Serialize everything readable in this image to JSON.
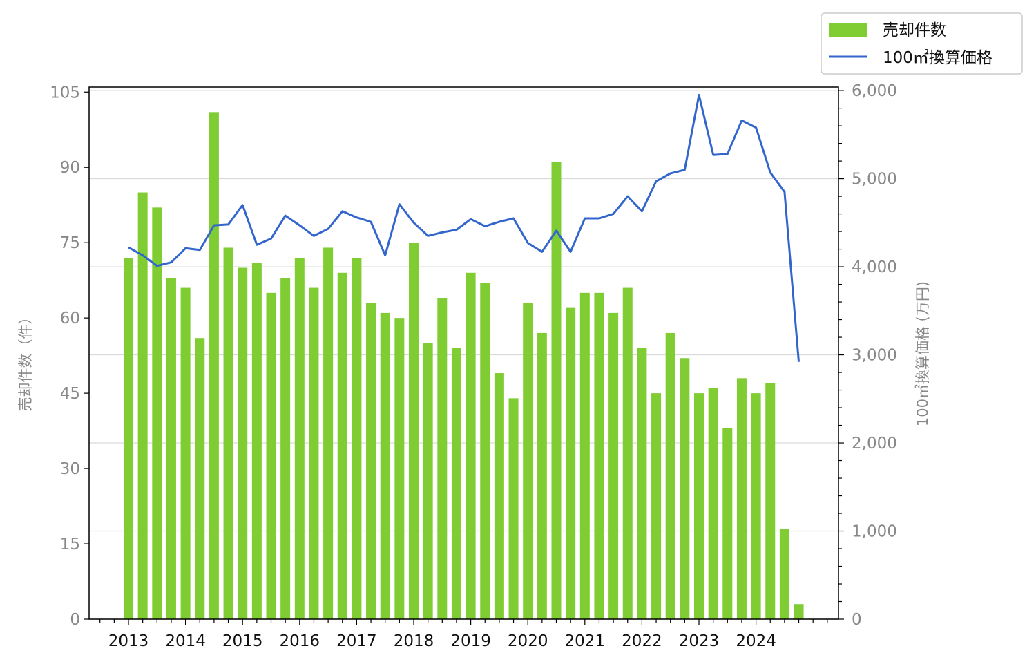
{
  "chart_data": {
    "type": "bar+line",
    "x_tick_labels": [
      "2013",
      "2014",
      "2015",
      "2016",
      "2017",
      "2018",
      "2019",
      "2020",
      "2021",
      "2022",
      "2023",
      "2024"
    ],
    "quarter_count": 48,
    "series": [
      {
        "name": "売却件数",
        "type": "bar",
        "axis": "left",
        "color": "#7fcc33",
        "values": [
          72,
          85,
          82,
          68,
          66,
          56,
          101,
          74,
          70,
          71,
          65,
          68,
          72,
          66,
          74,
          69,
          72,
          63,
          61,
          60,
          75,
          55,
          64,
          54,
          69,
          67,
          49,
          44,
          63,
          57,
          91,
          62,
          65,
          65,
          61,
          66,
          54,
          45,
          57,
          52,
          45,
          46,
          38,
          48,
          45,
          47,
          18,
          3
        ]
      },
      {
        "name": "100㎡換算価格",
        "type": "line",
        "axis": "right",
        "color": "#3366cc",
        "values": [
          4220,
          4130,
          4010,
          4050,
          4210,
          4190,
          4470,
          4480,
          4700,
          4250,
          4320,
          4580,
          4470,
          4350,
          4430,
          4630,
          4560,
          4510,
          4130,
          4710,
          4500,
          4350,
          4390,
          4420,
          4540,
          4460,
          4510,
          4550,
          4270,
          4170,
          4410,
          4170,
          4550,
          4550,
          4600,
          4800,
          4630,
          4970,
          5060,
          5100,
          5950,
          5270,
          5280,
          5660,
          5580,
          5070,
          4850,
          2920
        ]
      }
    ],
    "y_left": {
      "label": "売却件数（件）",
      "range": [
        0,
        106
      ],
      "ticks": [
        "0",
        "15",
        "30",
        "45",
        "60",
        "75",
        "90",
        "105"
      ]
    },
    "y_right": {
      "label": "100㎡換算価格 (万円)",
      "range": [
        0,
        6040
      ],
      "ticks": [
        "0",
        "1,000",
        "2,000",
        "3,000",
        "4,000",
        "5,000",
        "6,000"
      ]
    },
    "grid": "horizontal, right axis",
    "legend_position": "top-right, outside plot"
  }
}
